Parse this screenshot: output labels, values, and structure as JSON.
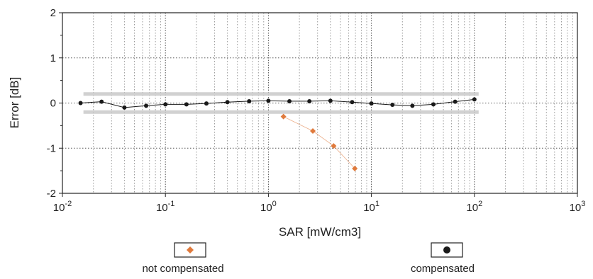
{
  "chart_data": {
    "type": "scatter",
    "xscale": "log",
    "xlim": [
      0.01,
      1000
    ],
    "ylim": [
      -2,
      2
    ],
    "xlabel": "SAR [mW/cm3]",
    "ylabel": "Error [dB]",
    "x_ticks": [
      {
        "value": 0.01,
        "base": "10",
        "exp": "-2"
      },
      {
        "value": 0.1,
        "base": "10",
        "exp": "-1"
      },
      {
        "value": 1,
        "base": "10",
        "exp": "0"
      },
      {
        "value": 10,
        "base": "10",
        "exp": "1"
      },
      {
        "value": 100,
        "base": "10",
        "exp": "2"
      },
      {
        "value": 1000,
        "base": "10",
        "exp": "3"
      }
    ],
    "y_ticks": [
      {
        "value": 2,
        "label": "2"
      },
      {
        "value": 1,
        "label": "1"
      },
      {
        "value": 0,
        "label": "0"
      },
      {
        "value": -1,
        "label": "-1"
      },
      {
        "value": -2,
        "label": "-2"
      }
    ],
    "grid": true,
    "uncertainty_band": [
      -0.2,
      0.2
    ],
    "legend_placement": "bottom",
    "series": [
      {
        "name": "not compensated",
        "color": "#e07a3c",
        "marker": "diamond",
        "points": [
          [
            1.4,
            -0.3
          ],
          [
            2.7,
            -0.62
          ],
          [
            4.3,
            -0.95
          ],
          [
            6.9,
            -1.45
          ]
        ]
      },
      {
        "name": "compensated",
        "color": "#1a1a1a",
        "marker": "circle",
        "points": [
          [
            0.015,
            0.0
          ],
          [
            0.024,
            0.03
          ],
          [
            0.04,
            -0.1
          ],
          [
            0.065,
            -0.06
          ],
          [
            0.1,
            -0.03
          ],
          [
            0.16,
            -0.03
          ],
          [
            0.25,
            -0.01
          ],
          [
            0.4,
            0.02
          ],
          [
            0.65,
            0.04
          ],
          [
            1.0,
            0.05
          ],
          [
            1.6,
            0.04
          ],
          [
            2.5,
            0.04
          ],
          [
            4.0,
            0.05
          ],
          [
            6.5,
            0.02
          ],
          [
            10,
            -0.01
          ],
          [
            16,
            -0.04
          ],
          [
            25,
            -0.06
          ],
          [
            40,
            -0.03
          ],
          [
            65,
            0.03
          ],
          [
            100,
            0.08
          ]
        ]
      }
    ]
  }
}
